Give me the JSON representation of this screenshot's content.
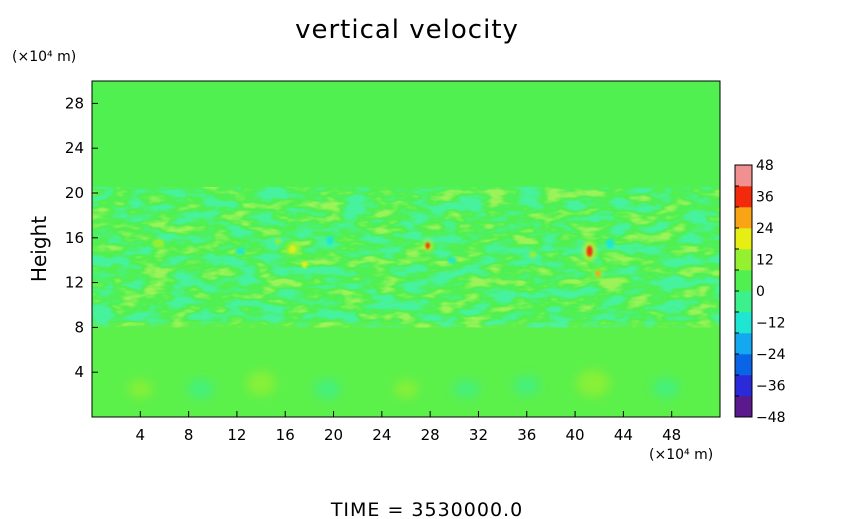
{
  "chart_data": {
    "type": "heatmap",
    "title": "vertical velocity",
    "ylabel": "Height",
    "y_unit": "(×10⁴ m)",
    "x_unit": "(×10⁴ m)",
    "xlim": [
      0,
      52
    ],
    "ylim": [
      0,
      30
    ],
    "x_ticks": [
      {
        "value": 4,
        "label": "4"
      },
      {
        "value": 8,
        "label": "8"
      },
      {
        "value": 12,
        "label": "12"
      },
      {
        "value": 16,
        "label": "16"
      },
      {
        "value": 20,
        "label": "20"
      },
      {
        "value": 24,
        "label": "24"
      },
      {
        "value": 28,
        "label": "28"
      },
      {
        "value": 32,
        "label": "32"
      },
      {
        "value": 36,
        "label": "36"
      },
      {
        "value": 40,
        "label": "40"
      },
      {
        "value": 44,
        "label": "44"
      },
      {
        "value": 48,
        "label": "48"
      }
    ],
    "y_ticks": [
      {
        "value": 4,
        "label": "4"
      },
      {
        "value": 8,
        "label": "8"
      },
      {
        "value": 12,
        "label": "12"
      },
      {
        "value": 16,
        "label": "16"
      },
      {
        "value": 20,
        "label": "20"
      },
      {
        "value": 24,
        "label": "24"
      },
      {
        "value": 28,
        "label": "28"
      }
    ],
    "colorbar": {
      "min": -48,
      "max": 48,
      "ticks": [
        {
          "value": 48,
          "label": "48"
        },
        {
          "value": 36,
          "label": "36"
        },
        {
          "value": 24,
          "label": "24"
        },
        {
          "value": 12,
          "label": "12"
        },
        {
          "value": 0,
          "label": "0"
        },
        {
          "value": -12,
          "label": "−12"
        },
        {
          "value": -24,
          "label": "−24"
        },
        {
          "value": -36,
          "label": "−36"
        },
        {
          "value": -48,
          "label": "−48"
        }
      ],
      "colors": [
        "#5a1a8c",
        "#2a2ad8",
        "#0a64e6",
        "#14a8f0",
        "#1ee6d2",
        "#3cf08c",
        "#50f050",
        "#96f032",
        "#e6ee14",
        "#f8a414",
        "#f02a0a",
        "#f09090"
      ]
    },
    "background_value": 0,
    "features": [
      {
        "kind": "cell",
        "x": 4,
        "y": 2.5,
        "w": 2,
        "h": 1.6,
        "value": 8
      },
      {
        "kind": "cell",
        "x": 9,
        "y": 2.5,
        "w": 2.2,
        "h": 1.8,
        "value": -8
      },
      {
        "kind": "cell",
        "x": 14,
        "y": 3,
        "w": 2.4,
        "h": 2.2,
        "value": 9
      },
      {
        "kind": "cell",
        "x": 19.5,
        "y": 2.5,
        "w": 2.2,
        "h": 1.8,
        "value": -8
      },
      {
        "kind": "cell",
        "x": 26,
        "y": 2.5,
        "w": 2,
        "h": 1.6,
        "value": 8
      },
      {
        "kind": "cell",
        "x": 31,
        "y": 2.5,
        "w": 2.2,
        "h": 1.6,
        "value": -6
      },
      {
        "kind": "cell",
        "x": 36,
        "y": 2.8,
        "w": 2.2,
        "h": 1.8,
        "value": -7
      },
      {
        "kind": "cell",
        "x": 41.5,
        "y": 3,
        "w": 2.8,
        "h": 2.4,
        "value": 10
      },
      {
        "kind": "cell",
        "x": 47.5,
        "y": 2.6,
        "w": 2.2,
        "h": 1.8,
        "value": -7
      },
      {
        "kind": "cell",
        "x": 27.8,
        "y": 15.3,
        "w": 0.35,
        "h": 0.6,
        "value": 36
      },
      {
        "kind": "cell",
        "x": 41.2,
        "y": 14.8,
        "w": 0.5,
        "h": 1.0,
        "value": 36
      },
      {
        "kind": "cell",
        "x": 41.9,
        "y": 12.8,
        "w": 0.4,
        "h": 0.6,
        "value": 28
      },
      {
        "kind": "cell",
        "x": 16.6,
        "y": 15.0,
        "w": 0.6,
        "h": 0.7,
        "value": 22
      },
      {
        "kind": "cell",
        "x": 17.6,
        "y": 13.6,
        "w": 0.5,
        "h": 0.6,
        "value": 18
      },
      {
        "kind": "cell",
        "x": 19.7,
        "y": 15.8,
        "w": 0.6,
        "h": 0.8,
        "value": -16
      },
      {
        "kind": "cell",
        "x": 15.4,
        "y": 15.7,
        "w": 0.5,
        "h": 0.6,
        "value": 14
      },
      {
        "kind": "cell",
        "x": 42.9,
        "y": 15.5,
        "w": 0.7,
        "h": 0.9,
        "value": -14
      },
      {
        "kind": "cell",
        "x": 12.3,
        "y": 14.8,
        "w": 0.8,
        "h": 0.6,
        "value": -10
      },
      {
        "kind": "cell",
        "x": 5.5,
        "y": 15.5,
        "w": 1.0,
        "h": 0.8,
        "value": 10
      },
      {
        "kind": "cell",
        "x": 29.8,
        "y": 14.0,
        "w": 0.7,
        "h": 0.6,
        "value": -12
      },
      {
        "kind": "cell",
        "x": 36.5,
        "y": 14.5,
        "w": 0.6,
        "h": 0.6,
        "value": 12
      }
    ]
  },
  "footer": {
    "time_label": "TIME  =  3530000.0"
  }
}
